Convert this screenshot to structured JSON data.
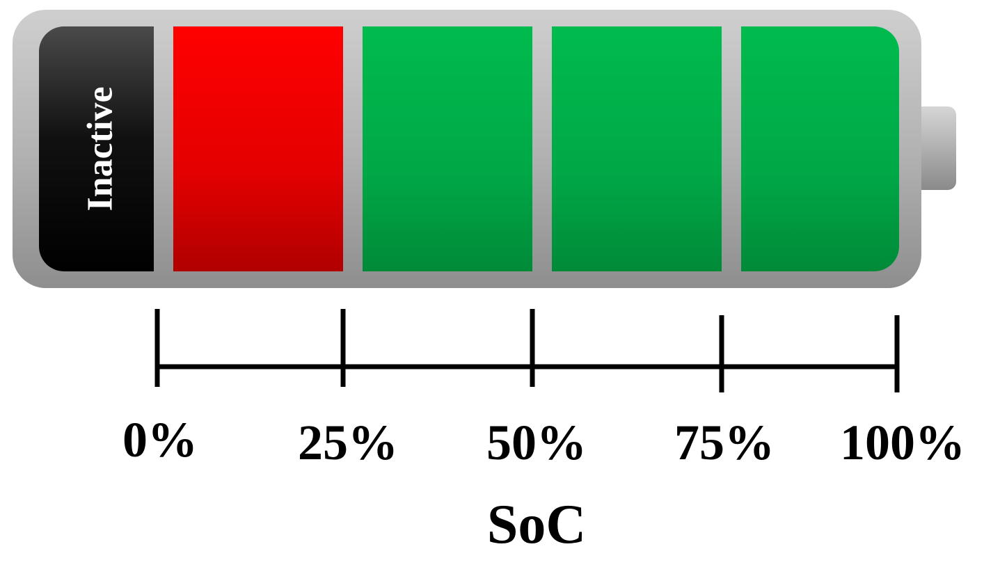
{
  "battery": {
    "inactive_label": "Inactive",
    "colors": {
      "casing": "#b8b8b8",
      "inactive": "#111111",
      "low": "#ff0000",
      "charged": "#00b14a",
      "text_inactive": "#ffffff"
    },
    "segments": [
      {
        "state": "low",
        "from_pct": 0,
        "to_pct": 25
      },
      {
        "state": "charged",
        "from_pct": 25,
        "to_pct": 50
      },
      {
        "state": "charged",
        "from_pct": 50,
        "to_pct": 75
      },
      {
        "state": "charged",
        "from_pct": 75,
        "to_pct": 100
      }
    ]
  },
  "scale": {
    "ticks": [
      "0%",
      "25%",
      "50%",
      "75%",
      "100%"
    ],
    "axis_label": "SoC"
  }
}
